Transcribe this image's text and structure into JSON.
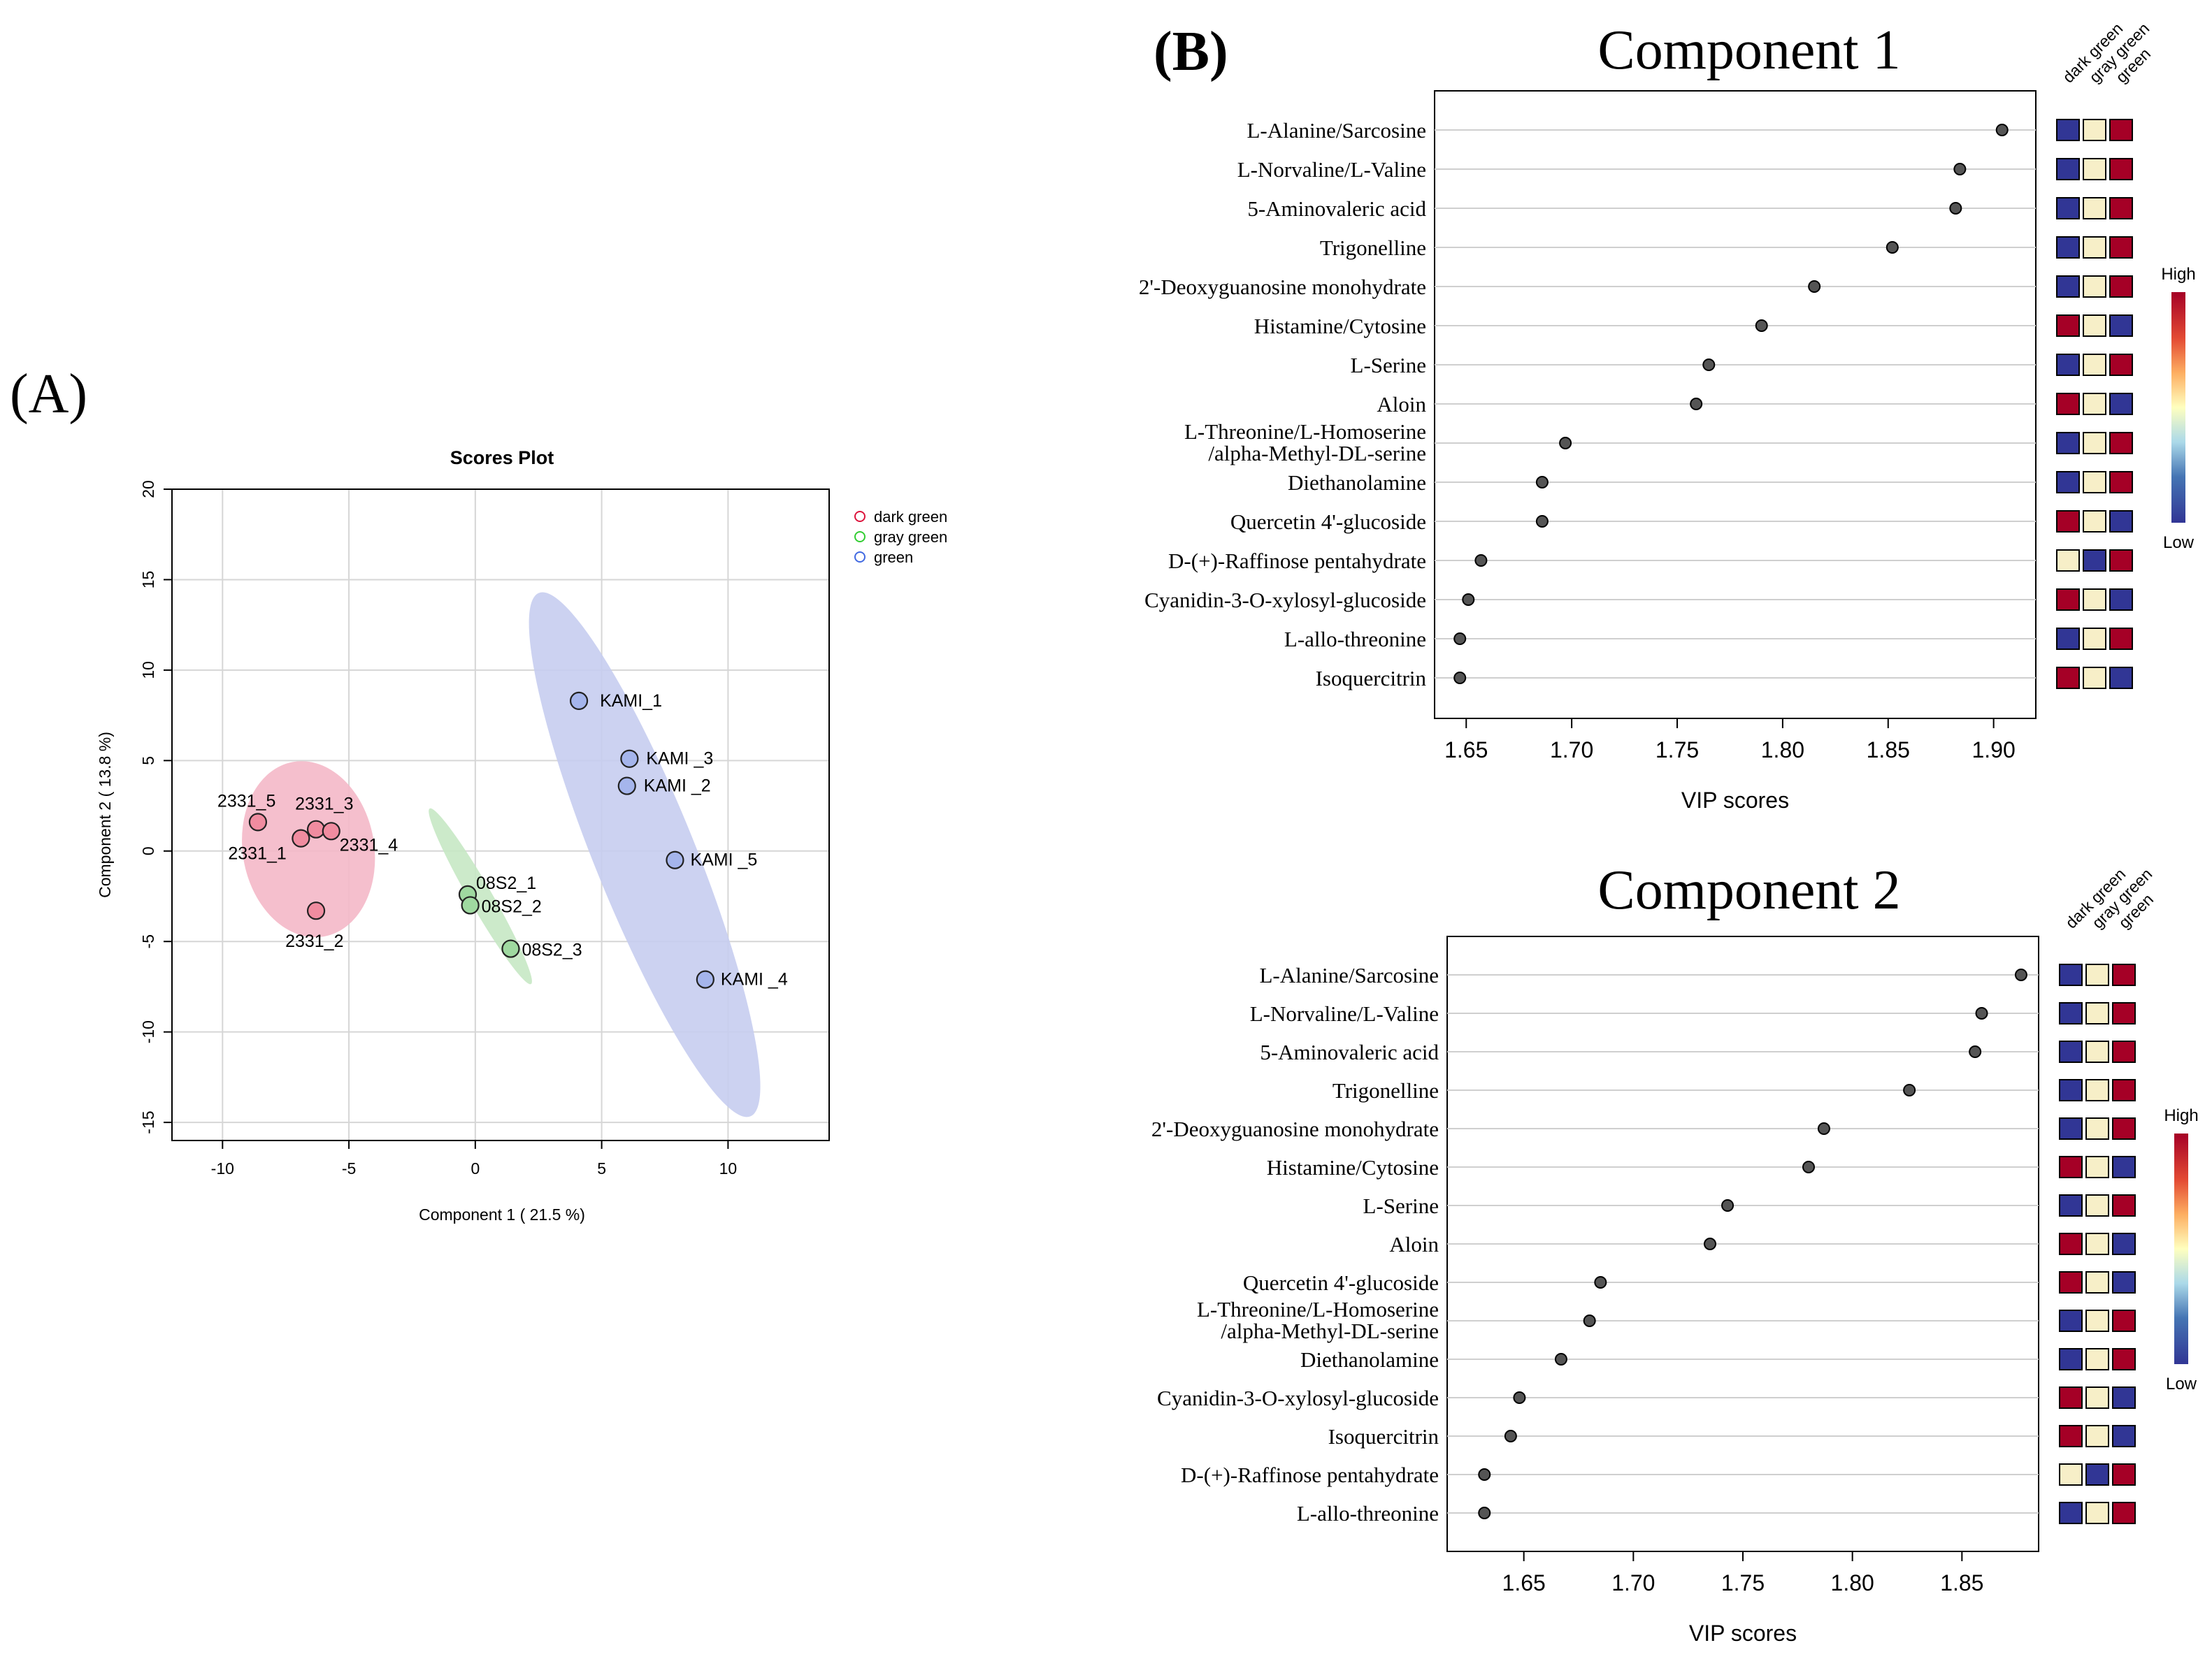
{
  "panel_labels": {
    "a": "(A)",
    "b": "(B)"
  },
  "chart_data": [
    {
      "type": "scatter",
      "title": "Scores Plot",
      "xlabel": "Component 1 ( 21.5 %)",
      "ylabel": "Component 2 ( 13.8 %)",
      "xlim": [
        -12,
        14
      ],
      "ylim": [
        -16,
        20
      ],
      "xticks": [
        -10,
        -5,
        0,
        5,
        10
      ],
      "yticks": [
        -15,
        -10,
        -5,
        0,
        5,
        10,
        15,
        20
      ],
      "grid": true,
      "legend": [
        {
          "label": "dark green",
          "color": "#dc143c"
        },
        {
          "label": "gray green",
          "color": "#32cd32"
        },
        {
          "label": "green",
          "color": "#4169e1"
        }
      ],
      "groups": [
        {
          "name": "dark green",
          "fill": "#f08ca0",
          "ellipse_fill": "#f4b8c8",
          "ellipse": {
            "cx": -6.6,
            "cy": 0.1,
            "rx": 2.6,
            "ry": 4.9,
            "angle": -10
          },
          "points": [
            {
              "label": "2331_5",
              "x": -8.6,
              "y": 1.6
            },
            {
              "label": "2331_3",
              "x": -6.3,
              "y": 1.2
            },
            {
              "label": "2331_4",
              "x": -5.7,
              "y": 1.1
            },
            {
              "label": "2331_1",
              "x": -6.9,
              "y": 0.7
            },
            {
              "label": "2331_2",
              "x": -6.3,
              "y": -3.3
            }
          ]
        },
        {
          "name": "gray green",
          "fill": "#9fd9a0",
          "ellipse_fill": "#c7e8c4",
          "ellipse": {
            "cx": 0.2,
            "cy": -2.5,
            "rx": 0.45,
            "ry": 5.6,
            "angle": -30
          },
          "points": [
            {
              "label": "08S2_1",
              "x": -0.3,
              "y": -2.4
            },
            {
              "label": "08S2_2",
              "x": -0.2,
              "y": -3.0
            },
            {
              "label": "08S2_3",
              "x": 1.4,
              "y": -5.4
            }
          ]
        },
        {
          "name": "green",
          "fill": "#a5b5ec",
          "ellipse_fill": "#c6cdf0",
          "ellipse": {
            "cx": 6.7,
            "cy": -0.2,
            "rx": 2.0,
            "ry": 15.6,
            "angle": -22
          },
          "points": [
            {
              "label": "KAMI_1",
              "x": 4.1,
              "y": 8.3
            },
            {
              "label": "KAMI _3",
              "x": 6.1,
              "y": 5.1
            },
            {
              "label": "KAMI _2",
              "x": 6.0,
              "y": 3.6
            },
            {
              "label": "KAMI _5",
              "x": 7.9,
              "y": -0.5
            },
            {
              "label": "KAMI _4",
              "x": 9.1,
              "y": -7.1
            }
          ]
        }
      ]
    },
    {
      "type": "dot",
      "title": "Component 1",
      "xlabel": "VIP scores",
      "xlim": [
        1.635,
        1.92
      ],
      "xticks": [
        "1.65",
        "1.70",
        "1.75",
        "1.80",
        "1.85",
        "1.90"
      ],
      "heatmap_columns": [
        "dark green",
        "gray green",
        "green"
      ],
      "colorbar": {
        "high": "High",
        "low": "Low"
      },
      "features": [
        {
          "label": [
            "L-Alanine/Sarcosine"
          ],
          "vip": 1.904,
          "heat": [
            "L",
            "M",
            "H"
          ]
        },
        {
          "label": [
            "L-Norvaline/L-Valine"
          ],
          "vip": 1.884,
          "heat": [
            "L",
            "M",
            "H"
          ]
        },
        {
          "label": [
            "5-Aminovaleric  acid"
          ],
          "vip": 1.882,
          "heat": [
            "L",
            "M",
            "H"
          ]
        },
        {
          "label": [
            "Trigonelline"
          ],
          "vip": 1.852,
          "heat": [
            "L",
            "M",
            "H"
          ]
        },
        {
          "label": [
            "2'-Deoxyguanosine monohydrate"
          ],
          "vip": 1.815,
          "heat": [
            "L",
            "M",
            "H"
          ]
        },
        {
          "label": [
            "Histamine/Cytosine"
          ],
          "vip": 1.79,
          "heat": [
            "H",
            "M",
            "L"
          ]
        },
        {
          "label": [
            "L-Serine"
          ],
          "vip": 1.765,
          "heat": [
            "L",
            "M",
            "H"
          ]
        },
        {
          "label": [
            "Aloin"
          ],
          "vip": 1.759,
          "heat": [
            "H",
            "M",
            "L"
          ]
        },
        {
          "label": [
            "L-Threonine/L-Homoserine",
            "/alpha-Methyl-DL-serine"
          ],
          "vip": 1.697,
          "heat": [
            "L",
            "M",
            "H"
          ]
        },
        {
          "label": [
            "Diethanolamine"
          ],
          "vip": 1.686,
          "heat": [
            "L",
            "M",
            "H"
          ]
        },
        {
          "label": [
            "Quercetin 4'-glucoside"
          ],
          "vip": 1.686,
          "heat": [
            "H",
            "M",
            "L"
          ]
        },
        {
          "label": [
            "D-(+)-Raffinose pentahydrate"
          ],
          "vip": 1.657,
          "heat": [
            "M",
            "L",
            "H"
          ]
        },
        {
          "label": [
            "Cyanidin-3-O-xylosyl-glucoside"
          ],
          "vip": 1.651,
          "heat": [
            "H",
            "M",
            "L"
          ]
        },
        {
          "label": [
            "L-allo-threonine"
          ],
          "vip": 1.647,
          "heat": [
            "L",
            "M",
            "H"
          ]
        },
        {
          "label": [
            "Isoquercitrin"
          ],
          "vip": 1.647,
          "heat": [
            "H",
            "M",
            "L"
          ]
        }
      ]
    },
    {
      "type": "dot",
      "title": "Component 2",
      "xlabel": "VIP scores",
      "xlim": [
        1.615,
        1.885
      ],
      "xticks": [
        "1.65",
        "1.70",
        "1.75",
        "1.80",
        "1.85"
      ],
      "heatmap_columns": [
        "dark green",
        "gray green",
        "green"
      ],
      "colorbar": {
        "high": "High",
        "low": "Low"
      },
      "features": [
        {
          "label": [
            "L-Alanine/Sarcosine"
          ],
          "vip": 1.877,
          "heat": [
            "L",
            "M",
            "H"
          ]
        },
        {
          "label": [
            "L-Norvaline/L-Valine"
          ],
          "vip": 1.859,
          "heat": [
            "L",
            "M",
            "H"
          ]
        },
        {
          "label": [
            "5-Aminovaleric  acid"
          ],
          "vip": 1.856,
          "heat": [
            "L",
            "M",
            "H"
          ]
        },
        {
          "label": [
            "Trigonelline"
          ],
          "vip": 1.826,
          "heat": [
            "L",
            "M",
            "H"
          ]
        },
        {
          "label": [
            "2'-Deoxyguanosine monohydrate"
          ],
          "vip": 1.787,
          "heat": [
            "L",
            "M",
            "H"
          ]
        },
        {
          "label": [
            "Histamine/Cytosine"
          ],
          "vip": 1.78,
          "heat": [
            "H",
            "M",
            "L"
          ]
        },
        {
          "label": [
            "L-Serine"
          ],
          "vip": 1.743,
          "heat": [
            "L",
            "M",
            "H"
          ]
        },
        {
          "label": [
            "Aloin"
          ],
          "vip": 1.735,
          "heat": [
            "H",
            "M",
            "L"
          ]
        },
        {
          "label": [
            "Quercetin 4'-glucoside"
          ],
          "vip": 1.685,
          "heat": [
            "H",
            "M",
            "L"
          ]
        },
        {
          "label": [
            "L-Threonine/L-Homoserine",
            "/alpha-Methyl-DL-serine"
          ],
          "vip": 1.68,
          "heat": [
            "L",
            "M",
            "H"
          ]
        },
        {
          "label": [
            "Diethanolamine"
          ],
          "vip": 1.667,
          "heat": [
            "L",
            "M",
            "H"
          ]
        },
        {
          "label": [
            "Cyanidin-3-O-xylosyl-glucoside"
          ],
          "vip": 1.648,
          "heat": [
            "H",
            "M",
            "L"
          ]
        },
        {
          "label": [
            "Isoquercitrin"
          ],
          "vip": 1.644,
          "heat": [
            "H",
            "M",
            "L"
          ]
        },
        {
          "label": [
            "D-(+)-Raffinose pentahydrate"
          ],
          "vip": 1.632,
          "heat": [
            "M",
            "L",
            "H"
          ]
        },
        {
          "label": [
            "L-allo-threonine"
          ],
          "vip": 1.632,
          "heat": [
            "L",
            "M",
            "H"
          ]
        }
      ]
    }
  ]
}
